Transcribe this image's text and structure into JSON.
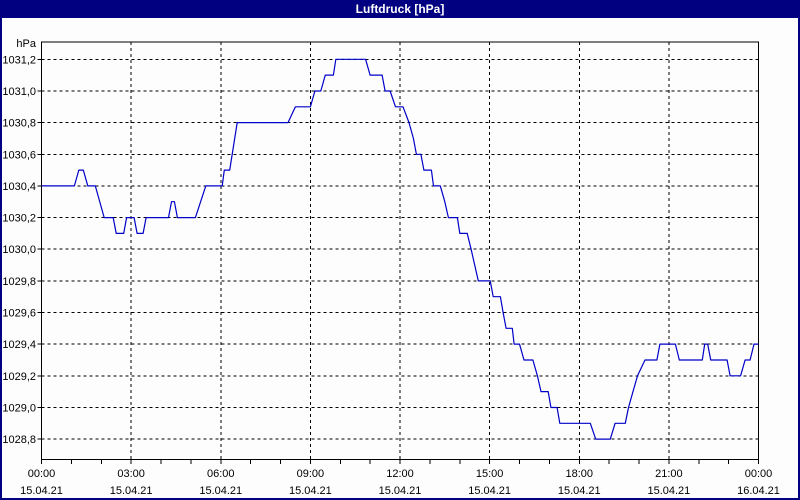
{
  "window": {
    "title": "Luftdruck [hPa]"
  },
  "colors": {
    "titlebar_bg": "#000080",
    "titlebar_text": "#FFFFFF",
    "window_border": "#000080",
    "plot_background": "#FDFDFD",
    "grid": "#000000",
    "axis": "#000000",
    "line": "#0000C8",
    "label_text": "#000000"
  },
  "chart_data": {
    "type": "line",
    "title": "Luftdruck [hPa]",
    "ylabel": "hPa",
    "xlabel": "",
    "x_unit": "hours",
    "xlim": [
      0,
      24
    ],
    "ylim": [
      1028.67,
      1031.31
    ],
    "grid": "dashed, black, horizontal every 0.2 hPa, vertical every 3 h",
    "legend": "none",
    "y_ticks": {
      "values": [
        1031.2,
        1031.0,
        1030.8,
        1030.6,
        1030.4,
        1030.2,
        1030.0,
        1029.8,
        1029.6,
        1029.4,
        1029.2,
        1029.0,
        1028.8
      ],
      "labels": [
        "1031,2",
        "1031,0",
        "1030,8",
        "1030,6",
        "1030,4",
        "1030,2",
        "1030,0",
        "1029,8",
        "1029,6",
        "1029,4",
        "1029,2",
        "1029,0",
        "1028,8"
      ]
    },
    "x_ticks": {
      "minor_every_hours": 1,
      "major_hours": [
        0,
        3,
        6,
        9,
        12,
        15,
        18,
        21,
        24
      ],
      "time_labels": [
        "00:00",
        "03:00",
        "06:00",
        "09:00",
        "12:00",
        "15:00",
        "18:00",
        "21:00",
        "00:00"
      ],
      "date_labels": [
        "15.04.21",
        "15.04.21",
        "15.04.21",
        "15.04.21",
        "15.04.21",
        "15.04.21",
        "15.04.21",
        "15.04.21",
        "16.04.21"
      ]
    },
    "series": [
      {
        "name": "Luftdruck",
        "color": "#0000C8",
        "points": [
          [
            0.0,
            1030.4
          ],
          [
            1.1,
            1030.4
          ],
          [
            1.25,
            1030.5
          ],
          [
            1.4,
            1030.5
          ],
          [
            1.55,
            1030.4
          ],
          [
            1.8,
            1030.4
          ],
          [
            2.1,
            1030.2
          ],
          [
            2.4,
            1030.2
          ],
          [
            2.5,
            1030.1
          ],
          [
            2.75,
            1030.1
          ],
          [
            2.85,
            1030.2
          ],
          [
            3.1,
            1030.2
          ],
          [
            3.2,
            1030.1
          ],
          [
            3.4,
            1030.1
          ],
          [
            3.5,
            1030.2
          ],
          [
            4.25,
            1030.2
          ],
          [
            4.35,
            1030.3
          ],
          [
            4.45,
            1030.3
          ],
          [
            4.55,
            1030.2
          ],
          [
            5.15,
            1030.2
          ],
          [
            5.5,
            1030.4
          ],
          [
            6.05,
            1030.4
          ],
          [
            6.12,
            1030.5
          ],
          [
            6.3,
            1030.5
          ],
          [
            6.55,
            1030.8
          ],
          [
            8.25,
            1030.8
          ],
          [
            8.5,
            1030.9
          ],
          [
            9.0,
            1030.9
          ],
          [
            9.15,
            1031.0
          ],
          [
            9.35,
            1031.0
          ],
          [
            9.5,
            1031.1
          ],
          [
            9.77,
            1031.1
          ],
          [
            9.85,
            1031.2
          ],
          [
            10.85,
            1031.2
          ],
          [
            11.0,
            1031.1
          ],
          [
            11.4,
            1031.1
          ],
          [
            11.5,
            1031.0
          ],
          [
            11.67,
            1031.0
          ],
          [
            11.85,
            1030.9
          ],
          [
            12.1,
            1030.9
          ],
          [
            12.3,
            1030.8
          ],
          [
            12.45,
            1030.7
          ],
          [
            12.55,
            1030.6
          ],
          [
            12.7,
            1030.6
          ],
          [
            12.8,
            1030.5
          ],
          [
            13.05,
            1030.5
          ],
          [
            13.12,
            1030.4
          ],
          [
            13.35,
            1030.4
          ],
          [
            13.5,
            1030.3
          ],
          [
            13.62,
            1030.2
          ],
          [
            13.92,
            1030.2
          ],
          [
            14.0,
            1030.1
          ],
          [
            14.25,
            1030.1
          ],
          [
            14.38,
            1030.0
          ],
          [
            14.5,
            1029.9
          ],
          [
            14.62,
            1029.8
          ],
          [
            15.02,
            1029.8
          ],
          [
            15.12,
            1029.7
          ],
          [
            15.36,
            1029.7
          ],
          [
            15.45,
            1029.6
          ],
          [
            15.55,
            1029.5
          ],
          [
            15.76,
            1029.5
          ],
          [
            15.82,
            1029.4
          ],
          [
            16.0,
            1029.4
          ],
          [
            16.15,
            1029.3
          ],
          [
            16.45,
            1029.3
          ],
          [
            16.6,
            1029.2
          ],
          [
            16.72,
            1029.1
          ],
          [
            16.96,
            1029.1
          ],
          [
            17.05,
            1029.0
          ],
          [
            17.26,
            1029.0
          ],
          [
            17.35,
            1028.9
          ],
          [
            18.37,
            1028.9
          ],
          [
            18.55,
            1028.8
          ],
          [
            19.04,
            1028.8
          ],
          [
            19.2,
            1028.9
          ],
          [
            19.54,
            1028.9
          ],
          [
            19.65,
            1029.0
          ],
          [
            19.8,
            1029.1
          ],
          [
            19.95,
            1029.2
          ],
          [
            20.2,
            1029.3
          ],
          [
            20.6,
            1029.3
          ],
          [
            20.7,
            1029.4
          ],
          [
            21.22,
            1029.4
          ],
          [
            21.35,
            1029.3
          ],
          [
            22.12,
            1029.3
          ],
          [
            22.2,
            1029.4
          ],
          [
            22.3,
            1029.4
          ],
          [
            22.4,
            1029.3
          ],
          [
            22.95,
            1029.3
          ],
          [
            23.05,
            1029.2
          ],
          [
            23.4,
            1029.2
          ],
          [
            23.55,
            1029.3
          ],
          [
            23.72,
            1029.3
          ],
          [
            23.85,
            1029.4
          ],
          [
            24.0,
            1029.4
          ]
        ]
      }
    ]
  }
}
